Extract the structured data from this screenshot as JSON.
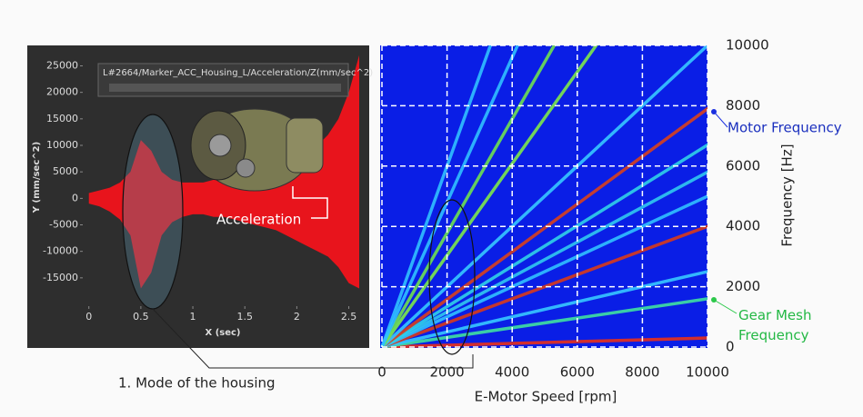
{
  "chart_data": [
    {
      "type": "waveform",
      "title": "L#2664/Marker_ACC_Housing_L/Acceleration/Z(mm/sec^2)",
      "x_label": "X (sec)",
      "y_label": "Y (mm/sec^2)",
      "annotation": "Acceleration",
      "color": "#e8141c",
      "x": [
        0,
        0.1,
        0.2,
        0.3,
        0.4,
        0.5,
        0.6,
        0.7,
        0.8,
        0.9,
        1.0,
        1.1,
        1.2,
        1.3,
        1.4,
        1.5,
        1.6,
        1.7,
        1.8,
        1.9,
        2.0,
        2.1,
        2.2,
        2.3,
        2.4,
        2.5,
        2.6
      ],
      "upper": [
        1000,
        1500,
        2000,
        3000,
        5000,
        11000,
        9000,
        5000,
        3500,
        3000,
        3000,
        3000,
        3500,
        3500,
        4000,
        4500,
        5000,
        5500,
        6000,
        7000,
        8000,
        9000,
        10000,
        12000,
        15000,
        20000,
        27000
      ],
      "lower": [
        -1000,
        -1500,
        -2500,
        -4000,
        -7000,
        -17000,
        -14000,
        -7000,
        -4500,
        -3500,
        -3000,
        -3000,
        -3500,
        -3500,
        -4000,
        -4500,
        -5000,
        -5500,
        -6000,
        -7000,
        -8000,
        -9000,
        -10000,
        -11000,
        -13000,
        -16000,
        -17000
      ],
      "xlim": [
        -0.05,
        2.6
      ],
      "ylim": [
        -20000,
        28000
      ],
      "xticks": [
        0,
        0.5,
        1,
        1.5,
        2,
        2.5
      ],
      "yticks": [
        25000,
        20000,
        15000,
        10000,
        5000,
        0,
        -5000,
        -10000,
        -15000
      ]
    },
    {
      "type": "spectrogram",
      "x_label": "E-Motor Speed [rpm]",
      "y_label": "Frequency [Hz]",
      "xlim": [
        0,
        10000
      ],
      "ylim": [
        0,
        10000
      ],
      "xticks": [
        0,
        2000,
        4000,
        6000,
        8000,
        10000
      ],
      "yticks": [
        0,
        2000,
        4000,
        6000,
        8000,
        10000
      ],
      "grid": true,
      "background": "#0a1ee6",
      "lines": [
        {
          "slope": 0.03,
          "color": "#e8301a"
        },
        {
          "slope": 0.16,
          "color": "#3fe0a0"
        },
        {
          "slope": 0.25,
          "color": "#36c8ff"
        },
        {
          "slope": 0.4,
          "color": "#d83a1a"
        },
        {
          "slope": 0.5,
          "color": "#30c0ff"
        },
        {
          "slope": 0.58,
          "color": "#30c8f0"
        },
        {
          "slope": 0.67,
          "color": "#30d0e8"
        },
        {
          "slope": 0.79,
          "color": "#d8401c"
        },
        {
          "slope": 1.0,
          "color": "#36c8ff"
        },
        {
          "slope": 1.52,
          "color": "#7de84a"
        },
        {
          "slope": 1.89,
          "color": "#6ee050"
        },
        {
          "slope": 2.4,
          "color": "#30c0ff"
        },
        {
          "slope": 3.0,
          "color": "#30c0ff"
        }
      ],
      "annotations": {
        "motor": "Motor Frequency",
        "gear": "Gear Mesh Frequency"
      }
    }
  ],
  "caption": "1. Mode of the housing"
}
